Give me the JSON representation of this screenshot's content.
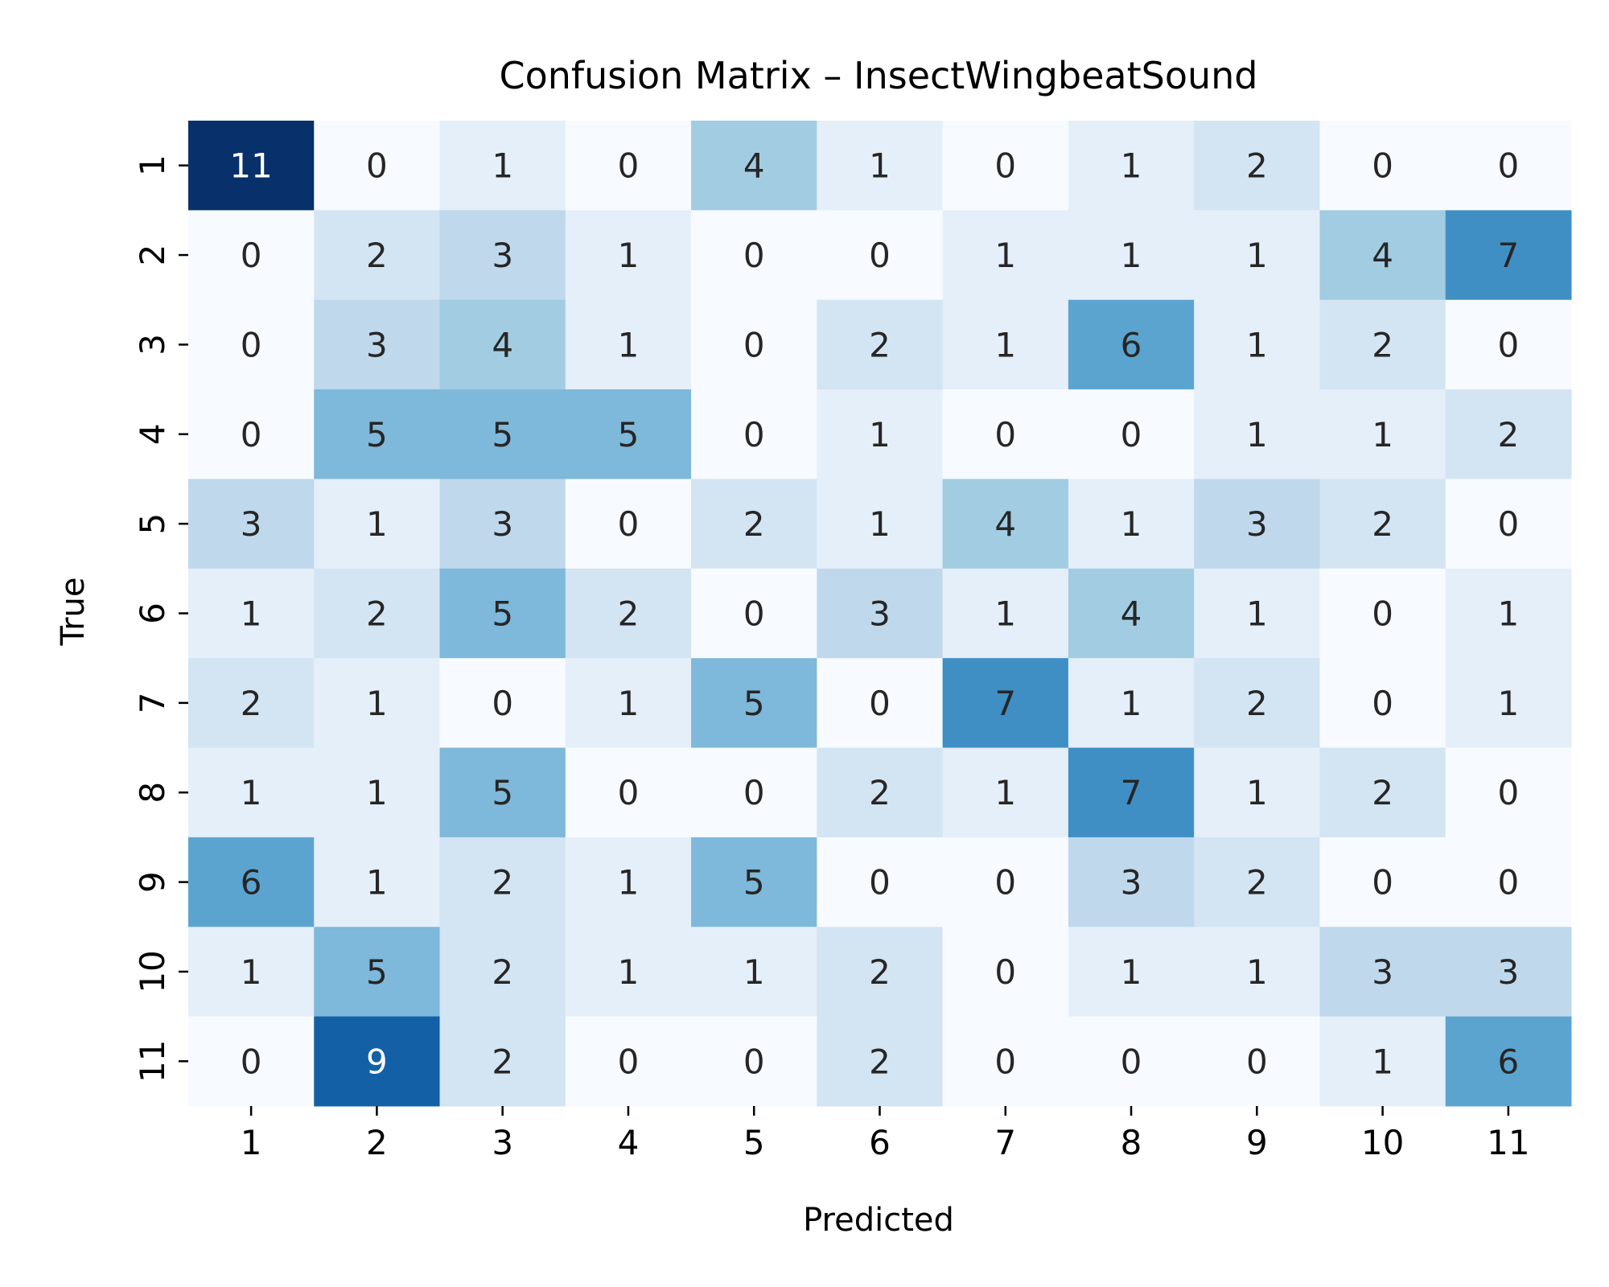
{
  "chart_data": {
    "type": "heatmap",
    "title": "Confusion Matrix – InsectWingbeatSound",
    "xlabel": "Predicted",
    "ylabel": "True",
    "x_categories": [
      "1",
      "2",
      "3",
      "4",
      "5",
      "6",
      "7",
      "8",
      "9",
      "10",
      "11"
    ],
    "y_categories": [
      "1",
      "2",
      "3",
      "4",
      "5",
      "6",
      "7",
      "8",
      "9",
      "10",
      "11"
    ],
    "values": [
      [
        11,
        0,
        1,
        0,
        4,
        1,
        0,
        1,
        2,
        0,
        0
      ],
      [
        0,
        2,
        3,
        1,
        0,
        0,
        1,
        1,
        1,
        4,
        7
      ],
      [
        0,
        3,
        4,
        1,
        0,
        2,
        1,
        6,
        1,
        2,
        0
      ],
      [
        0,
        5,
        5,
        5,
        0,
        1,
        0,
        0,
        1,
        1,
        2
      ],
      [
        3,
        1,
        3,
        0,
        2,
        1,
        4,
        1,
        3,
        2,
        0
      ],
      [
        1,
        2,
        5,
        2,
        0,
        3,
        1,
        4,
        1,
        0,
        1
      ],
      [
        2,
        1,
        0,
        1,
        5,
        0,
        7,
        1,
        2,
        0,
        1
      ],
      [
        1,
        1,
        5,
        0,
        0,
        2,
        1,
        7,
        1,
        2,
        0
      ],
      [
        6,
        1,
        2,
        1,
        5,
        0,
        0,
        3,
        2,
        0,
        0
      ],
      [
        1,
        5,
        2,
        1,
        1,
        2,
        0,
        1,
        1,
        3,
        3
      ],
      [
        0,
        9,
        2,
        0,
        0,
        2,
        0,
        0,
        0,
        1,
        6
      ]
    ],
    "colormap": "Blues",
    "value_range": [
      0,
      11
    ],
    "colorbar": false,
    "annotations": true,
    "colors": {
      "text_dark": "#262626",
      "text_light": "#ffffff",
      "axis_text": "#000000"
    }
  }
}
